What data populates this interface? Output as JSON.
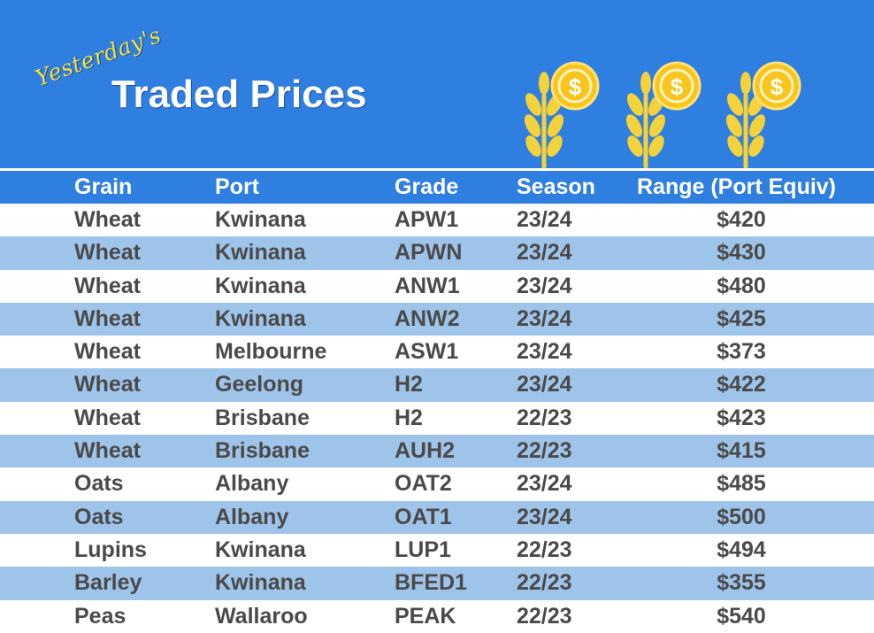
{
  "header": {
    "subtitle": "Yesterday's",
    "title": "Traded Prices",
    "icons": [
      "wheat-coin-icon",
      "wheat-coin-icon",
      "wheat-coin-icon"
    ],
    "colors": {
      "background": "#2f7fe0",
      "accent": "#f3df3d",
      "coin": "#f7c51c",
      "alt_row": "#9fc4ea"
    }
  },
  "table": {
    "columns": [
      "Grain",
      "Port",
      "Grade",
      "Season",
      "Range (Port Equiv)"
    ],
    "rows": [
      {
        "grain": "Wheat",
        "port": "Kwinana",
        "grade": "APW1",
        "season": "23/24",
        "price": "$420"
      },
      {
        "grain": "Wheat",
        "port": "Kwinana",
        "grade": "APWN",
        "season": "23/24",
        "price": "$430"
      },
      {
        "grain": "Wheat",
        "port": "Kwinana",
        "grade": "ANW1",
        "season": "23/24",
        "price": "$480"
      },
      {
        "grain": "Wheat",
        "port": "Kwinana",
        "grade": "ANW2",
        "season": "23/24",
        "price": "$425"
      },
      {
        "grain": "Wheat",
        "port": "Melbourne",
        "grade": "ASW1",
        "season": "23/24",
        "price": "$373"
      },
      {
        "grain": "Wheat",
        "port": "Geelong",
        "grade": "H2",
        "season": "23/24",
        "price": "$422"
      },
      {
        "grain": "Wheat",
        "port": "Brisbane",
        "grade": "H2",
        "season": "22/23",
        "price": "$423"
      },
      {
        "grain": "Wheat",
        "port": "Brisbane",
        "grade": "AUH2",
        "season": "22/23",
        "price": "$415"
      },
      {
        "grain": "Oats",
        "port": "Albany",
        "grade": "OAT2",
        "season": "23/24",
        "price": "$485"
      },
      {
        "grain": "Oats",
        "port": "Albany",
        "grade": "OAT1",
        "season": "23/24",
        "price": "$500"
      },
      {
        "grain": "Lupins",
        "port": "Kwinana",
        "grade": "LUP1",
        "season": "22/23",
        "price": "$494"
      },
      {
        "grain": "Barley",
        "port": "Kwinana",
        "grade": "BFED1",
        "season": "22/23",
        "price": "$355"
      },
      {
        "grain": "Peas",
        "port": "Wallaroo",
        "grade": "PEAK",
        "season": "22/23",
        "price": "$540"
      }
    ]
  }
}
